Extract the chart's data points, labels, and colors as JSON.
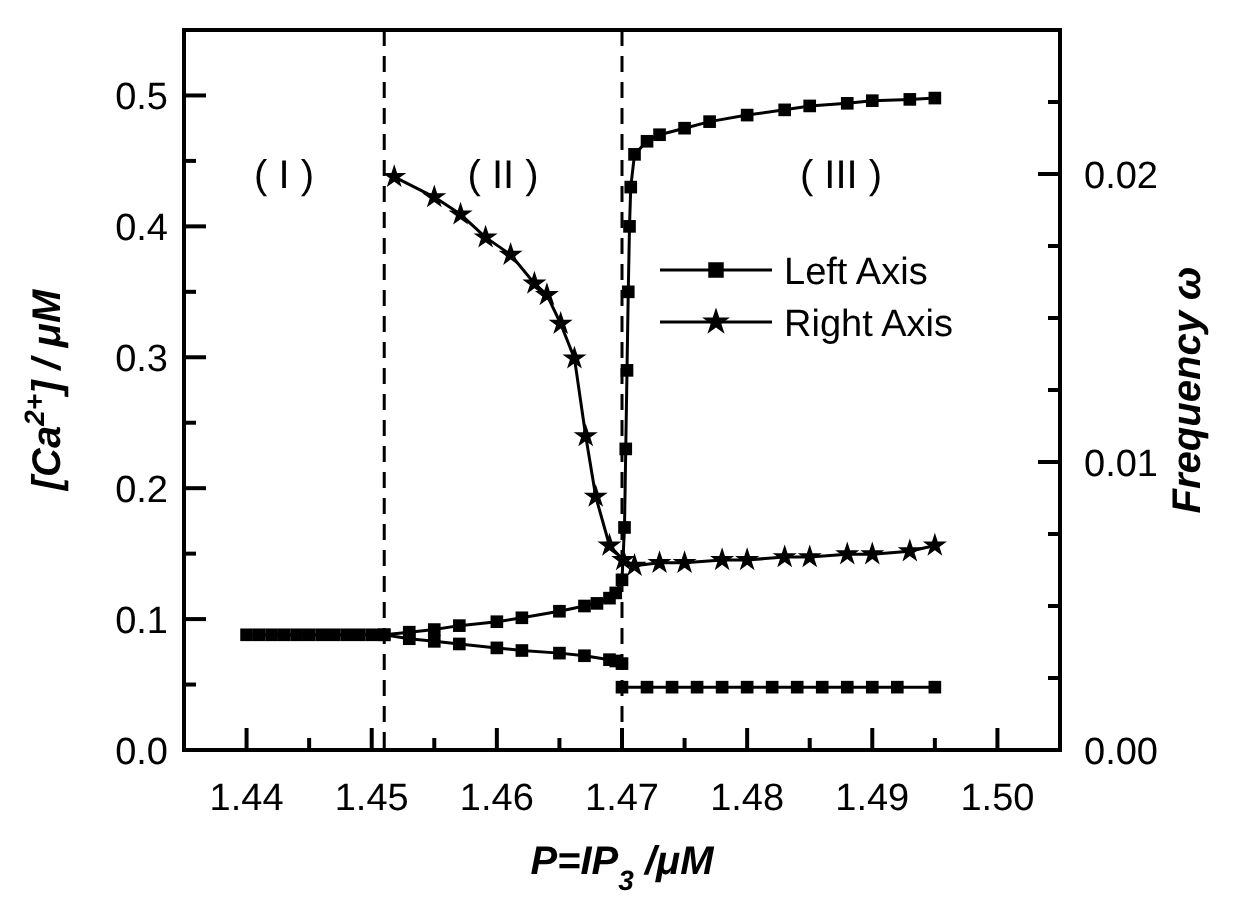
{
  "chart_data": {
    "type": "line",
    "xlabel": "P=IP$_{3}$ /μM",
    "ylabel": "[Ca$^{2+}$] / μM",
    "y2label": "Frequency ω",
    "xlim": [
      1.435,
      1.505
    ],
    "ylim": [
      0,
      0.55
    ],
    "y2lim": [
      0,
      0.025
    ],
    "xticks": [
      1.44,
      {
        "value": 1.445,
        "label": null
      },
      1.45,
      {
        "value": 1.455,
        "label": null
      },
      1.46,
      {
        "value": 1.465,
        "label": null
      },
      1.47,
      {
        "value": 1.475,
        "label": null
      },
      1.48,
      {
        "value": 1.485,
        "label": null
      },
      1.49,
      {
        "value": 1.495,
        "label": null
      },
      {
        "value": 1.5,
        "label": "1.50"
      }
    ],
    "yticks": [
      {
        "value": 0,
        "label": "0.0"
      },
      {
        "value": 0.05,
        "label": null
      },
      0.1,
      {
        "value": 0.15,
        "label": null
      },
      0.2,
      {
        "value": 0.25,
        "label": null
      },
      0.3,
      {
        "value": 0.35,
        "label": null
      },
      0.4,
      {
        "value": 0.45,
        "label": null
      },
      0.5
    ],
    "y2ticks": [
      {
        "value": 0,
        "label": "0.00"
      },
      {
        "value": 0.0025,
        "label": null
      },
      {
        "value": 0.005,
        "label": null
      },
      {
        "value": 0.0075,
        "label": null
      },
      0.01,
      {
        "value": 0.0125,
        "label": null
      },
      {
        "value": 0.015,
        "label": null
      },
      {
        "value": 0.0175,
        "label": null
      },
      0.02,
      {
        "value": 0.0225,
        "label": null
      }
    ],
    "grid": false,
    "legend": "right",
    "series": [
      {
        "name": "Left Axis",
        "color": "#000000",
        "marker": "square",
        "line_style": "solid",
        "x": [
          1.44,
          1.441,
          1.442,
          1.443,
          1.444,
          1.445,
          1.446,
          1.447,
          1.448,
          1.449,
          1.45,
          1.451,
          1.453,
          1.455,
          1.457,
          1.46,
          1.462,
          1.465,
          1.467,
          1.468,
          1.469,
          1.4695,
          1.47,
          1.4702,
          1.4703,
          1.4704,
          1.4705,
          1.4706,
          1.4707,
          1.471,
          1.472,
          1.473,
          1.475,
          1.477,
          1.48,
          1.483,
          1.485,
          1.488,
          1.49,
          1.493,
          1.495,
          null,
          1.451,
          1.453,
          1.455,
          1.457,
          1.46,
          1.462,
          1.465,
          1.467,
          1.469,
          1.4695,
          1.47,
          null,
          1.47,
          1.472,
          1.474,
          1.476,
          1.478,
          1.48,
          1.482,
          1.484,
          1.486,
          1.488,
          1.49,
          1.492,
          1.495
        ],
        "values": [
          0.088,
          0.088,
          0.088,
          0.088,
          0.088,
          0.088,
          0.088,
          0.088,
          0.088,
          0.088,
          0.088,
          0.088,
          0.09,
          0.092,
          0.095,
          0.098,
          0.101,
          0.106,
          0.11,
          0.112,
          0.116,
          0.12,
          0.13,
          0.17,
          0.23,
          0.29,
          0.35,
          0.4,
          0.43,
          0.455,
          0.465,
          0.47,
          0.475,
          0.48,
          0.485,
          0.489,
          0.492,
          0.494,
          0.496,
          0.497,
          0.498,
          null,
          0.088,
          0.085,
          0.083,
          0.081,
          0.078,
          0.076,
          0.074,
          0.072,
          0.069,
          0.068,
          0.066,
          null,
          0.048,
          0.048,
          0.048,
          0.048,
          0.048,
          0.048,
          0.048,
          0.048,
          0.048,
          0.048,
          0.048,
          0.048,
          0.048
        ]
      },
      {
        "name": "Right Axis",
        "color": "#000000",
        "marker": "star",
        "line_style": "solid",
        "axis": "y2",
        "x": [
          1.4518,
          1.455,
          1.4571,
          1.4591,
          1.4611,
          1.463,
          1.464,
          1.4651,
          1.4662,
          1.4671,
          1.4679,
          1.469,
          1.4701,
          1.471,
          1.473,
          1.475,
          1.478,
          1.48,
          1.483,
          1.485,
          1.488,
          1.49,
          1.493,
          1.495
        ],
        "values": [
          0.0199,
          0.0192,
          0.0186,
          0.0178,
          0.0172,
          0.0162,
          0.0158,
          0.0148,
          0.0136,
          0.0109,
          0.0088,
          0.0071,
          0.0066,
          0.0064,
          0.0065,
          0.0065,
          0.0066,
          0.0066,
          0.0067,
          0.0067,
          0.0068,
          0.0068,
          0.0069,
          0.0071
        ]
      }
    ],
    "ref_lines": [
      {
        "axis": "x",
        "value": 1.451,
        "line_style": "dashed",
        "color": "#000000"
      },
      {
        "axis": "x",
        "value": 1.47,
        "line_style": "dashed",
        "color": "#000000"
      }
    ],
    "annotations": [
      "( I )",
      "( II )",
      "( III )"
    ]
  }
}
